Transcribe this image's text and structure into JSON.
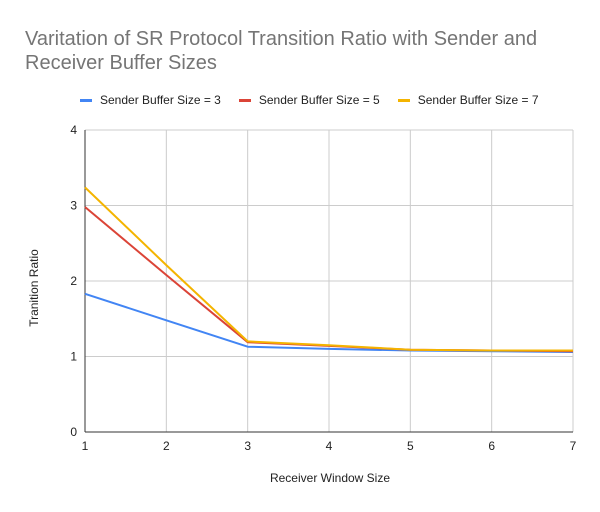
{
  "chart_data": {
    "type": "line",
    "title": "Varitation of SR Protocol Transition Ratio with Sender and Receiver Buffer Sizes",
    "xlabel": "Receiver Window Size",
    "ylabel": "Tranition Ratio",
    "x": [
      1,
      2,
      3,
      4,
      5,
      6,
      7
    ],
    "xlim": [
      1,
      7
    ],
    "ylim": [
      0,
      4
    ],
    "yticks": [
      0,
      1,
      2,
      3,
      4
    ],
    "grid": true,
    "legend": "top",
    "series": [
      {
        "name": "Sender Buffer Size = 3",
        "color": "#4285f4",
        "values": [
          1.83,
          1.48,
          1.13,
          1.1,
          1.08,
          1.07,
          1.06
        ]
      },
      {
        "name": "Sender Buffer Size = 5",
        "color": "#db4437",
        "values": [
          2.98,
          2.08,
          1.19,
          1.14,
          1.09,
          1.08,
          1.07
        ]
      },
      {
        "name": "Sender Buffer Size = 7",
        "color": "#f4b400",
        "values": [
          3.24,
          2.21,
          1.2,
          1.15,
          1.09,
          1.08,
          1.08
        ]
      }
    ]
  }
}
